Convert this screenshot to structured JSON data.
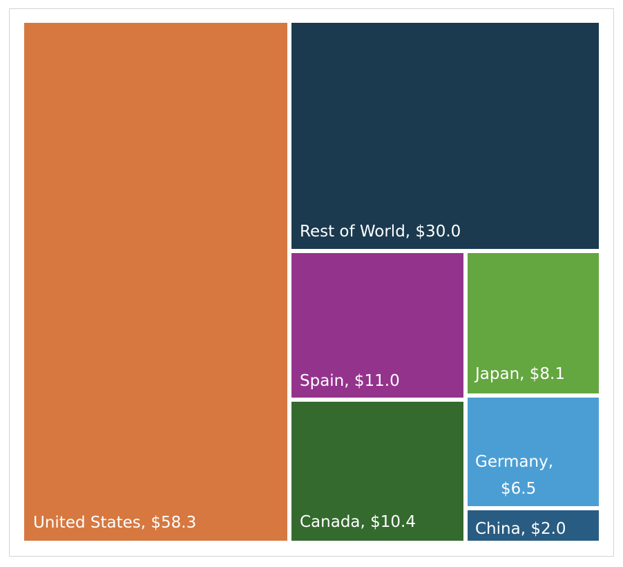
{
  "chart_data": {
    "type": "treemap",
    "title": "",
    "value_prefix": "$",
    "items": [
      {
        "name": "United States",
        "value": 58.3,
        "label": "United States,  $58.3",
        "color": "#D67840"
      },
      {
        "name": "Rest of World",
        "value": 30.0,
        "label": "Rest of World,  $30.0",
        "color": "#1B3A4F"
      },
      {
        "name": "Spain",
        "value": 11.0,
        "label": "Spain,  $11.0",
        "color": "#94338C"
      },
      {
        "name": "Japan",
        "value": 8.1,
        "label": "Japan,  $8.1",
        "color": "#64A640"
      },
      {
        "name": "Canada",
        "value": 10.4,
        "label": "Canada,  $10.4",
        "color": "#346A2E"
      },
      {
        "name": "Germany",
        "value": 6.5,
        "label_lines": [
          "Germany,",
          "$6.5"
        ],
        "color": "#4B9ED4"
      },
      {
        "name": "China",
        "value": 2.0,
        "label": "China,  $2.0",
        "color": "#285C82"
      }
    ]
  }
}
